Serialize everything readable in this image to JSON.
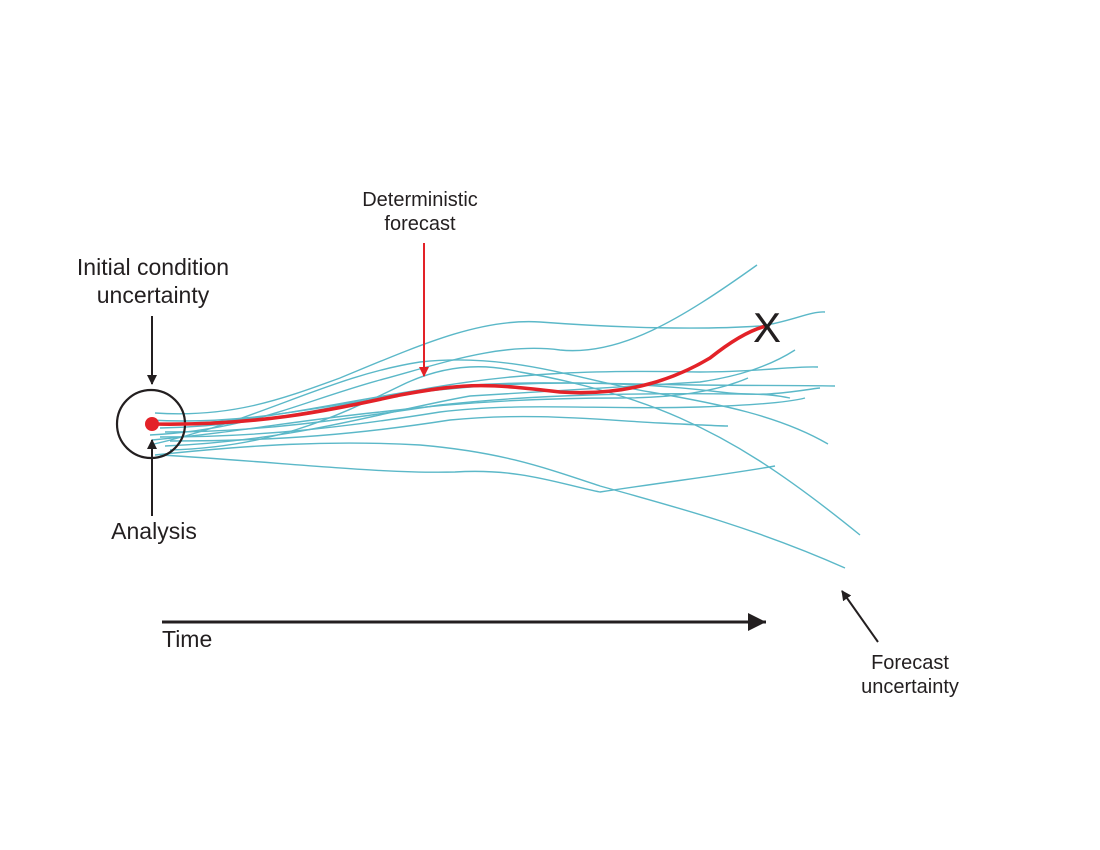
{
  "labels": {
    "initial_condition": [
      "Initial condition",
      "uncertainty"
    ],
    "deterministic": [
      "Deterministic",
      "forecast"
    ],
    "analysis": "Analysis",
    "time": "Time",
    "forecast_uncertainty": [
      "Forecast",
      "uncertainty"
    ],
    "end_marker": "X"
  },
  "colors": {
    "ensemble": "#5bb8c8",
    "deterministic": "#e32228",
    "ink": "#231f20",
    "background": "#ffffff"
  }
}
